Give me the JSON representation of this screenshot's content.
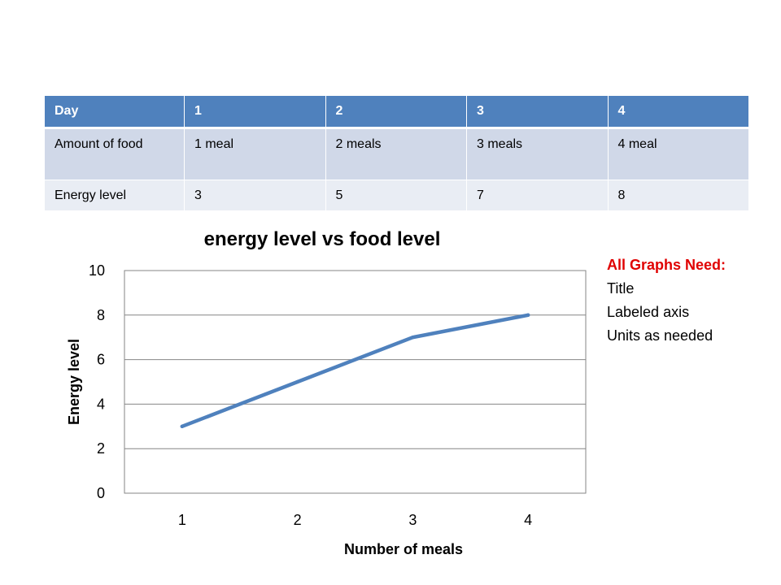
{
  "table": {
    "header": [
      "Day",
      "1",
      "2",
      "3",
      "4"
    ],
    "rows": [
      [
        "Amount of food",
        "1 meal",
        "2 meals",
        "3 meals",
        "4 meal"
      ],
      [
        "Energy level",
        "3",
        "5",
        "7",
        "8"
      ]
    ]
  },
  "chart_data": {
    "type": "line",
    "title": "energy level vs food level",
    "xlabel": "Number of meals",
    "ylabel": "Energy level",
    "categories": [
      "1",
      "2",
      "3",
      "4"
    ],
    "x": [
      1,
      2,
      3,
      4
    ],
    "series": [
      {
        "values": [
          3,
          5,
          7,
          8
        ],
        "color": "#4f81bd"
      }
    ],
    "ylim": [
      0,
      10
    ],
    "yticks": [
      0,
      2,
      4,
      6,
      8,
      10
    ],
    "grid": true,
    "legend": "none"
  },
  "note": {
    "heading": "All Graphs Need:",
    "items": [
      "Title",
      "Labeled axis",
      "Units as needed"
    ]
  },
  "colors": {
    "header_bg": "#4f81bd",
    "row_a_bg": "#d0d8e8",
    "row_b_bg": "#e9edf4",
    "note_heading": "#e00000"
  }
}
